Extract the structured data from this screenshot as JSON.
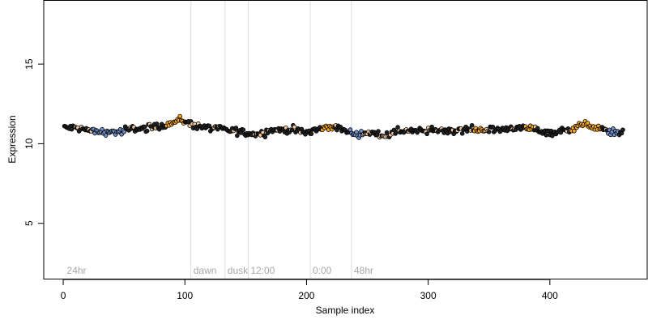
{
  "chart_data": {
    "type": "scatter",
    "title": "",
    "xlabel": "Sample index",
    "ylabel": "Expression",
    "xlim": [
      -16,
      480
    ],
    "ylim": [
      1.5,
      19
    ],
    "xticks": [
      0,
      100,
      200,
      300,
      400
    ],
    "yticks": [
      5,
      10,
      15
    ],
    "grid": false,
    "n_points": 460,
    "colors": {
      "neutral": "#222222",
      "high": "#f5a623",
      "low": "#6f8fc6",
      "point_outline": "#000000",
      "vline": "#dcdcdc",
      "annotation": "#a8a8a8"
    },
    "vlines": [
      {
        "x": 105,
        "label": "dawn"
      },
      {
        "x": 133,
        "label": "dusk"
      },
      {
        "x": 152,
        "label": "12:00"
      },
      {
        "x": 203,
        "label": "0:00"
      },
      {
        "x": 237,
        "label": "48hr"
      }
    ],
    "corner_labels": [
      {
        "x": 3,
        "label": "24hr"
      }
    ],
    "trend": [
      {
        "x": 1,
        "y": 11.0
      },
      {
        "x": 10,
        "y": 11.0
      },
      {
        "x": 20,
        "y": 10.85
      },
      {
        "x": 27,
        "y": 10.75
      },
      {
        "x": 48,
        "y": 10.75
      },
      {
        "x": 55,
        "y": 10.9
      },
      {
        "x": 70,
        "y": 11.0
      },
      {
        "x": 80,
        "y": 11.15
      },
      {
        "x": 90,
        "y": 11.3
      },
      {
        "x": 97,
        "y": 11.5
      },
      {
        "x": 105,
        "y": 11.2
      },
      {
        "x": 120,
        "y": 11.0
      },
      {
        "x": 132,
        "y": 10.9
      },
      {
        "x": 145,
        "y": 10.75
      },
      {
        "x": 160,
        "y": 10.6
      },
      {
        "x": 170,
        "y": 10.85
      },
      {
        "x": 185,
        "y": 10.9
      },
      {
        "x": 200,
        "y": 10.7
      },
      {
        "x": 212,
        "y": 10.95
      },
      {
        "x": 222,
        "y": 11.1
      },
      {
        "x": 232,
        "y": 10.8
      },
      {
        "x": 240,
        "y": 10.6
      },
      {
        "x": 255,
        "y": 10.65
      },
      {
        "x": 265,
        "y": 10.5
      },
      {
        "x": 280,
        "y": 10.85
      },
      {
        "x": 295,
        "y": 10.75
      },
      {
        "x": 310,
        "y": 10.85
      },
      {
        "x": 330,
        "y": 10.9
      },
      {
        "x": 350,
        "y": 10.85
      },
      {
        "x": 370,
        "y": 11.0
      },
      {
        "x": 385,
        "y": 10.95
      },
      {
        "x": 400,
        "y": 10.7
      },
      {
        "x": 415,
        "y": 10.85
      },
      {
        "x": 425,
        "y": 11.2
      },
      {
        "x": 435,
        "y": 11.1
      },
      {
        "x": 445,
        "y": 10.8
      },
      {
        "x": 460,
        "y": 10.7
      }
    ],
    "low_segments": [
      [
        24,
        50
      ],
      [
        236,
        246
      ],
      [
        448,
        456
      ]
    ],
    "high_segments": [
      [
        85,
        99
      ],
      [
        213,
        222
      ],
      [
        338,
        346
      ],
      [
        380,
        386
      ],
      [
        418,
        442
      ]
    ],
    "noise_sd": 0.2
  }
}
